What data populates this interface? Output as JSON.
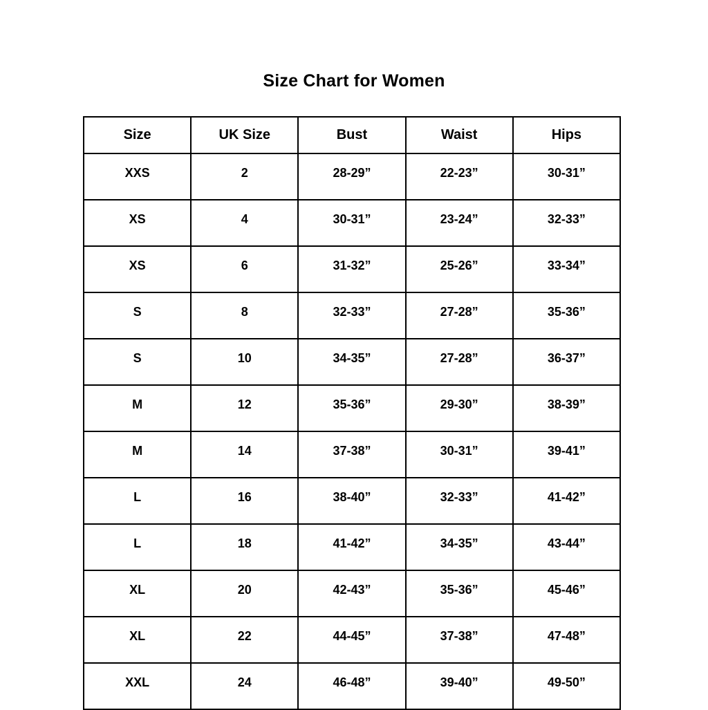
{
  "title": "Size Chart for Women",
  "chart_data": {
    "type": "table",
    "title": "Size Chart for Women",
    "columns": [
      "Size",
      "UK Size",
      "Bust",
      "Waist",
      "Hips"
    ],
    "rows": [
      [
        "XXS",
        "2",
        "28-29”",
        "22-23”",
        "30-31”"
      ],
      [
        "XS",
        "4",
        "30-31”",
        "23-24”",
        "32-33”"
      ],
      [
        "XS",
        "6",
        "31-32”",
        "25-26”",
        "33-34”"
      ],
      [
        "S",
        "8",
        "32-33”",
        "27-28”",
        "35-36”"
      ],
      [
        "S",
        "10",
        "34-35”",
        "27-28”",
        "36-37”"
      ],
      [
        "M",
        "12",
        "35-36”",
        "29-30”",
        "38-39”"
      ],
      [
        "M",
        "14",
        "37-38”",
        "30-31”",
        "39-41”"
      ],
      [
        "L",
        "16",
        "38-40”",
        "32-33”",
        "41-42”"
      ],
      [
        "L",
        "18",
        "41-42”",
        "34-35”",
        "43-44”"
      ],
      [
        "XL",
        "20",
        "42-43”",
        "35-36”",
        "45-46”"
      ],
      [
        "XL",
        "22",
        "44-45”",
        "37-38”",
        "47-48”"
      ],
      [
        "XXL",
        "24",
        "46-48”",
        "39-40”",
        "49-50”"
      ]
    ]
  }
}
